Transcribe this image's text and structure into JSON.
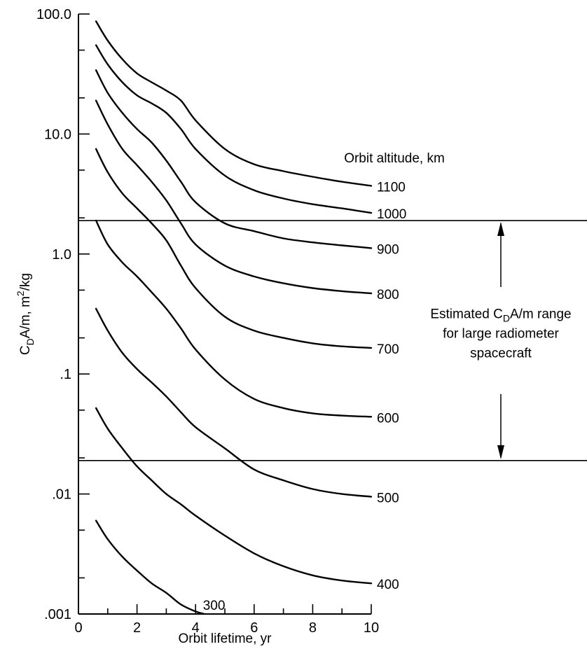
{
  "chart_data": {
    "type": "line",
    "xlabel": "Orbit lifetime, yr",
    "ylabel": "CDA/m, m²/kg",
    "ylabel_parts": {
      "main": "C",
      "sub": "D",
      "rest": "A/m, m",
      "sup": "2",
      "end": "/kg"
    },
    "xlim": [
      0,
      10
    ],
    "ylim": [
      0.001,
      100
    ],
    "y_scale": "log",
    "grid": false,
    "x_ticks": [
      0,
      2,
      4,
      6,
      8,
      10
    ],
    "x_tick_labels": [
      "0",
      "2",
      "4",
      "6",
      "8",
      "10"
    ],
    "y_ticks": [
      0.001,
      0.01,
      0.1,
      1,
      10,
      100
    ],
    "y_tick_labels": [
      ".001",
      ".01",
      ".1",
      "1.0",
      "10.0",
      "100.0"
    ],
    "legend_title": "Orbit altitude, km",
    "series": [
      {
        "name": "1100",
        "x": [
          0.6,
          1,
          1.5,
          2,
          2.5,
          3,
          3.5,
          4,
          5,
          6,
          7,
          8,
          9,
          10
        ],
        "y": [
          87,
          60,
          42,
          32,
          27,
          23,
          19,
          13,
          7.5,
          5.6,
          4.9,
          4.4,
          4,
          3.7
        ]
      },
      {
        "name": "1000",
        "x": [
          0.6,
          1,
          1.5,
          2,
          2.5,
          3,
          3.5,
          4,
          5,
          6,
          7,
          8,
          9,
          10
        ],
        "y": [
          55,
          38,
          27,
          21,
          18,
          15,
          11,
          7.5,
          4.5,
          3.4,
          2.9,
          2.6,
          2.4,
          2.2
        ]
      },
      {
        "name": "900",
        "x": [
          0.6,
          1,
          1.5,
          2,
          2.5,
          3,
          3.5,
          4,
          5,
          6,
          7,
          8,
          9,
          10
        ],
        "y": [
          34,
          22,
          15,
          11,
          8.5,
          6,
          4,
          2.7,
          1.8,
          1.55,
          1.35,
          1.25,
          1.18,
          1.12
        ]
      },
      {
        "name": "800",
        "x": [
          0.6,
          1,
          1.5,
          2,
          2.5,
          3,
          3.5,
          4,
          5,
          6,
          7,
          8,
          9,
          10
        ],
        "y": [
          19,
          12,
          7.5,
          5.5,
          4,
          2.8,
          1.8,
          1.2,
          0.8,
          0.65,
          0.57,
          0.52,
          0.49,
          0.47
        ]
      },
      {
        "name": "700",
        "x": [
          0.6,
          1,
          1.5,
          2,
          2.5,
          3,
          3.5,
          4,
          5,
          6,
          7,
          8,
          9,
          10
        ],
        "y": [
          7.5,
          4.8,
          3.2,
          2.4,
          1.8,
          1.3,
          0.8,
          0.52,
          0.3,
          0.23,
          0.2,
          0.18,
          0.17,
          0.165
        ]
      },
      {
        "name": "600",
        "x": [
          0.6,
          1,
          1.5,
          2,
          2.5,
          3,
          3.5,
          4,
          5,
          6,
          7,
          8,
          9,
          10
        ],
        "y": [
          1.9,
          1.2,
          0.85,
          0.65,
          0.48,
          0.35,
          0.24,
          0.16,
          0.09,
          0.062,
          0.052,
          0.047,
          0.045,
          0.044
        ]
      },
      {
        "name": "500",
        "x": [
          0.6,
          1,
          1.5,
          2,
          2.5,
          3,
          3.5,
          4,
          5,
          6,
          7,
          8,
          9,
          10
        ],
        "y": [
          0.35,
          0.23,
          0.15,
          0.11,
          0.085,
          0.065,
          0.048,
          0.036,
          0.024,
          0.016,
          0.013,
          0.011,
          0.01,
          0.0095
        ]
      },
      {
        "name": "400",
        "x": [
          0.6,
          1,
          1.5,
          2,
          2.5,
          3,
          3.5,
          4,
          5,
          6,
          7,
          8,
          9,
          10
        ],
        "y": [
          0.052,
          0.035,
          0.024,
          0.017,
          0.013,
          0.01,
          0.0082,
          0.0066,
          0.0045,
          0.0032,
          0.0025,
          0.0021,
          0.0019,
          0.0018
        ]
      },
      {
        "name": "300",
        "x": [
          0.6,
          1,
          1.5,
          2,
          2.5,
          3,
          3.5,
          4,
          4.3
        ],
        "y": [
          0.006,
          0.0042,
          0.003,
          0.0023,
          0.0018,
          0.0015,
          0.0012,
          0.00105,
          0.001
        ]
      }
    ],
    "range": {
      "y_lower": 0.019,
      "y_upper": 1.9
    },
    "annotation_lines": [
      "Estimated CDA/m range",
      "for large radiometer",
      "spacecraft"
    ]
  }
}
